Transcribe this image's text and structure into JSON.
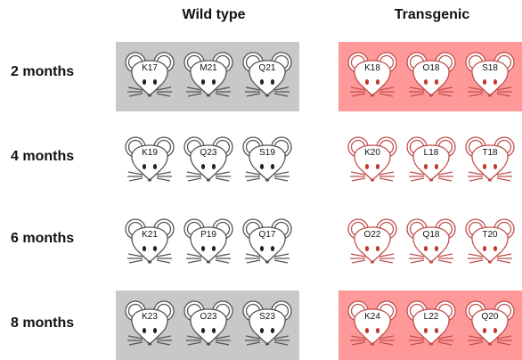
{
  "columns": {
    "wild_type": "Wild type",
    "transgenic": "Transgenic"
  },
  "rows": [
    {
      "label": "2 months",
      "shaded": true,
      "wild_type": [
        "K17",
        "M21",
        "Q21"
      ],
      "transgenic": [
        "K18",
        "O18",
        "S18"
      ]
    },
    {
      "label": "4 months",
      "shaded": false,
      "wild_type": [
        "K19",
        "Q23",
        "S19"
      ],
      "transgenic": [
        "K20",
        "L18",
        "T18"
      ]
    },
    {
      "label": "6 months",
      "shaded": false,
      "wild_type": [
        "K21",
        "P19",
        "Q17"
      ],
      "transgenic": [
        "O22",
        "Q18",
        "T20"
      ]
    },
    {
      "label": "8 months",
      "shaded": true,
      "wild_type": [
        "K23",
        "O23",
        "S23"
      ],
      "transgenic": [
        "K24",
        "L22",
        "Q20"
      ]
    }
  ],
  "colors": {
    "wild_type_shade": "#c8c8c8",
    "transgenic_shade": "#ff9999",
    "wild_type_outline": "#555555",
    "transgenic_outline": "#c0504d",
    "wild_type_eye": "#222222",
    "transgenic_eye": "#c0392b"
  }
}
